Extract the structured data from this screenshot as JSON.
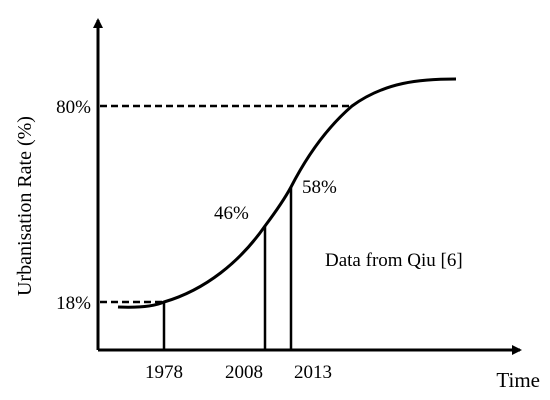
{
  "chart_data": {
    "type": "line",
    "title": "",
    "xlabel": "Time",
    "ylabel": "Urbanisation Rate (%)",
    "annotation": "Data from Qiu [6]",
    "x_ticks": [
      "1978",
      "2008",
      "2013"
    ],
    "y_ticks": [
      "18%",
      "80%"
    ],
    "points": [
      {
        "label": "18%",
        "x": 1978,
        "y": 18
      },
      {
        "label": "46%",
        "x": 2008,
        "y": 46
      },
      {
        "label": "58%",
        "x": 2013,
        "y": 58
      },
      {
        "label": "80%",
        "x": null,
        "y": 80
      }
    ],
    "curve": "schematic S-shaped (logistic) growth curve",
    "grid": false,
    "legend": "none"
  },
  "colors": {
    "line": "#000000",
    "background": "#ffffff"
  }
}
